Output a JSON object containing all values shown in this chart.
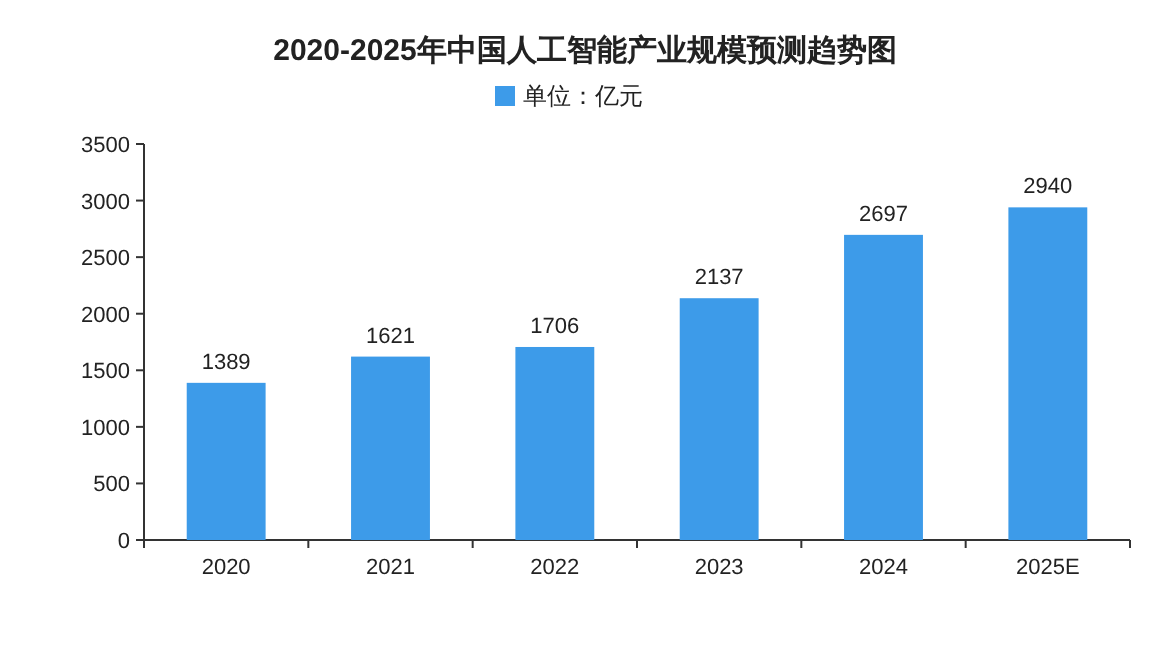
{
  "chart_data": {
    "type": "bar",
    "title": "2020-2025年中国人工智能产业规模预测趋势图",
    "categories": [
      "2020",
      "2021",
      "2022",
      "2023",
      "2024",
      "2025E"
    ],
    "series": [
      {
        "name": "单位：亿元",
        "color": "#3d9be9",
        "values": [
          1389,
          1621,
          1706,
          2137,
          2697,
          2940
        ]
      }
    ],
    "ylim": [
      0,
      3500
    ],
    "yticks": [
      0,
      500,
      1000,
      1500,
      2000,
      2500,
      3000,
      3500
    ],
    "data_labels": true,
    "legend": "top",
    "grid": false
  }
}
